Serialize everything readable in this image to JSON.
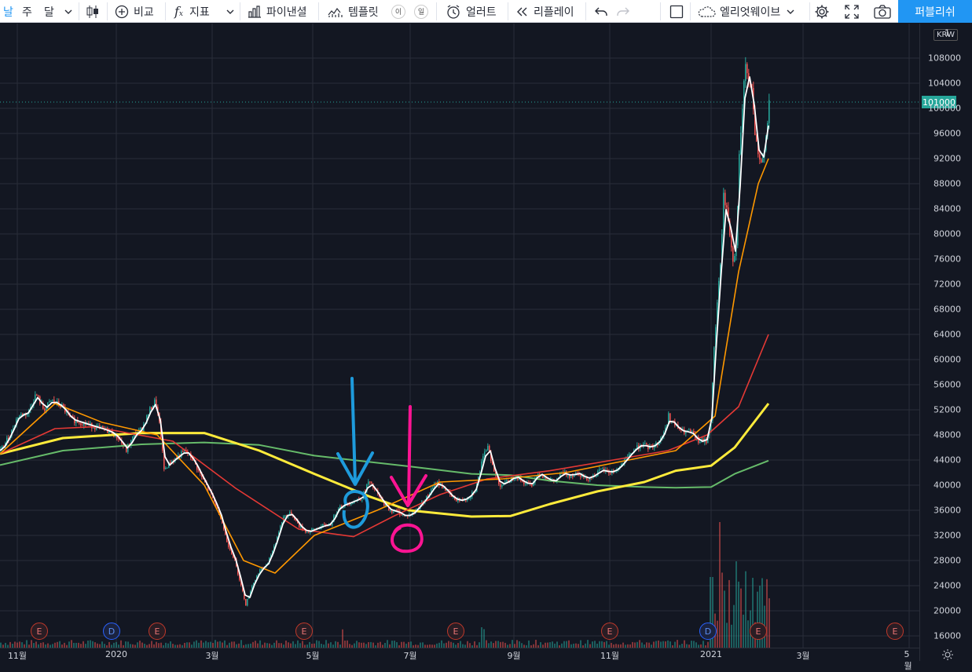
{
  "toolbar": {
    "interval_partial": "날",
    "interval_week": "주",
    "interval_month": "달",
    "compare": "비교",
    "indicators": "지표",
    "financials": "파이낸셜",
    "templates": "템플릿",
    "badge1": "이",
    "badge2": "일",
    "alert": "얼러트",
    "replay": "리플레이",
    "layout_name": "엘리엇웨이브",
    "publish": "퍼블리쉬"
  },
  "price_axis": {
    "currency": "KRW",
    "top_partial": "1",
    "ticks": [
      {
        "label": "108000",
        "value": 108000
      },
      {
        "label": "104000",
        "value": 104000
      },
      {
        "label": "100000",
        "value": 100000
      },
      {
        "label": "96000",
        "value": 96000
      },
      {
        "label": "92000",
        "value": 92000
      },
      {
        "label": "88000",
        "value": 88000
      },
      {
        "label": "84000",
        "value": 84000
      },
      {
        "label": "80000",
        "value": 80000
      },
      {
        "label": "76000",
        "value": 76000
      },
      {
        "label": "72000",
        "value": 72000
      },
      {
        "label": "68000",
        "value": 68000
      },
      {
        "label": "64000",
        "value": 64000
      },
      {
        "label": "60000",
        "value": 60000
      },
      {
        "label": "56000",
        "value": 56000
      },
      {
        "label": "52000",
        "value": 52000
      },
      {
        "label": "48000",
        "value": 48000
      },
      {
        "label": "44000",
        "value": 44000
      },
      {
        "label": "40000",
        "value": 40000
      },
      {
        "label": "36000",
        "value": 36000
      },
      {
        "label": "32000",
        "value": 32000
      },
      {
        "label": "28000",
        "value": 28000
      },
      {
        "label": "24000",
        "value": 24000
      },
      {
        "label": "20000",
        "value": 20000
      },
      {
        "label": "16000",
        "value": 16000
      }
    ],
    "last_price": "101000",
    "last_price_value": 101000
  },
  "time_axis": {
    "labels": [
      "11월",
      "2020",
      "3월",
      "5월",
      "7월",
      "9월",
      "11월",
      "2021",
      "3월",
      "5월"
    ]
  },
  "events": [
    "E",
    "D",
    "E",
    "E",
    "E",
    "E",
    "D",
    "E",
    "E"
  ],
  "colors": {
    "background": "#131722",
    "grid": "#2a2e39",
    "up": "#26a69a",
    "down": "#ef5350",
    "ma_white": "#ffffff",
    "ma_orange": "#ff9800",
    "ma_red": "#e53935",
    "ma_yellow": "#ffeb3b",
    "ma_green": "#66bb6a",
    "arrow_blue": "#1e9bdc",
    "arrow_pink": "#ff1493",
    "publish": "#2196f3"
  },
  "chart_data": {
    "type": "candlestick",
    "moving_averages": {
      "ma_yellow": [
        45000,
        47500,
        48300,
        48300,
        45500,
        41800,
        38200,
        36000,
        35000,
        35100,
        37000,
        39000,
        40500,
        42300,
        43100,
        46000,
        53000
      ],
      "ma_green": [
        43200,
        45500,
        46500,
        46800,
        46400,
        44700,
        43700,
        43000,
        41800,
        41600,
        40700,
        40000,
        39700,
        39600,
        39700,
        41800,
        43900
      ],
      "ma_red": [
        45000,
        49000,
        49300,
        47000,
        39500,
        33000,
        31800,
        35000,
        38500,
        41000,
        42300,
        44000,
        45500,
        48000,
        52500,
        64000
      ],
      "ma_orange": [
        45000,
        53000,
        50000,
        48000,
        40000,
        28000,
        26000,
        32000,
        36000,
        40500,
        41000,
        42000,
        44000,
        45500,
        51000,
        74000,
        88000,
        92000
      ]
    },
    "annotations": [
      {
        "type": "arrow",
        "color": "blue",
        "target_price": 38500
      },
      {
        "type": "arrow",
        "color": "pink",
        "target_price": 35500
      }
    ]
  }
}
